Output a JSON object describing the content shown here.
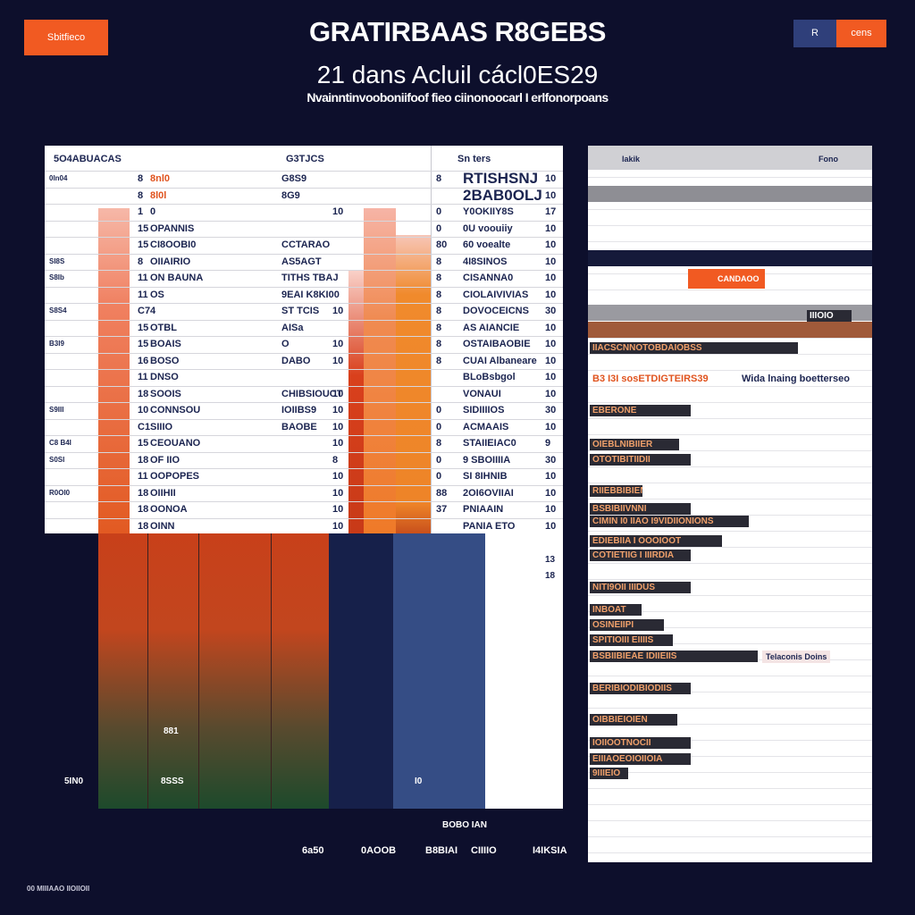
{
  "header": {
    "badge": "Sbitfieco",
    "title": "GRATIRBAAS R8GEBS",
    "subtitle": "21 dans Acluil cácl0ES29",
    "caption": "Nvainntinvooboniifoof fieo ciinonoocarl I erlfonorpoans",
    "button_icon": "R",
    "button_label": "cens"
  },
  "table": {
    "columns": [
      "5O4ABUACAS",
      "G3TJCS",
      "Sn ters"
    ],
    "rows": [
      {
        "n": "8",
        "name": "8nl0",
        "c": "G8S9",
        "rn": "8",
        "rt": "RTISHSNJ",
        "rr": "10",
        "l": "0ln04"
      },
      {
        "n": "8",
        "name": "8l0l",
        "c": "8G9",
        "rt": "2BAB0OLJ",
        "rr": "10"
      },
      {
        "n": "1",
        "name": "0",
        "r": "10",
        "rn": "0",
        "rt": "Y0OKIIY8S",
        "rr": "17"
      },
      {
        "n": "15",
        "name": "OPANNIS",
        "rn": "0",
        "rt": "0U voouiiy",
        "rr": "10"
      },
      {
        "n": "15",
        "name": "CI8OOBI0",
        "c": "CCTARAO",
        "rn": "80",
        "rt": "60 voealte",
        "rr": "10"
      },
      {
        "l": "SI8S",
        "n": "8",
        "name": "OIIAIRIO",
        "c": "AS5AGT",
        "rn": "8",
        "rt": "4I8SINOS",
        "rr": "10"
      },
      {
        "l": "S8lb",
        "n": "11",
        "name": "ON BAUNA",
        "c": "TITHS TBAJ",
        "rn": "8",
        "rt": "CISANNA0",
        "rr": "10"
      },
      {
        "n": "11",
        "name": "OS",
        "c": "9EAI K8KI00",
        "rn": "8",
        "rt": "CIOLAIVIVIAS",
        "rr": "10"
      },
      {
        "l": "S8S4",
        "n": "C7",
        "name": "4",
        "c": "ST TCIS",
        "r": "10",
        "rn": "8",
        "rt": "DOVOCEICNS",
        "rr": "30"
      },
      {
        "n": "15",
        "name": "OTBL",
        "c": "AISa",
        "rn": "8",
        "rt": "AS AIANCIE",
        "rr": "10"
      },
      {
        "l": "B3I9",
        "n": "15",
        "name": "BOAIS",
        "c": "O",
        "r": "10",
        "rn": "8",
        "rt": "OSTAIBAOBIE",
        "rr": "10"
      },
      {
        "n": "16",
        "name": "BOSO",
        "c": "DABO",
        "r": "10",
        "rn": "8",
        "rt": "CUAI Albaneare",
        "rr": "10"
      },
      {
        "n": "11",
        "name": "DNSO",
        "rt": "BLoBsbgol",
        "rr": "10"
      },
      {
        "n": "18",
        "name": "SOOIS",
        "c": "CHIBSIOUCT",
        "r": "10",
        "rt": "VONAUI",
        "rr": "10"
      },
      {
        "l": "S9III",
        "n": "10",
        "name": "CONNSOU",
        "c": "IOIIBS9",
        "r": "10",
        "rn": "0",
        "rt": "SIDIIIIOS",
        "rr": "30"
      },
      {
        "n": "C1",
        "name": "SIIIO",
        "c": "BAOBE",
        "r": "10",
        "rn": "0",
        "rt": "ACMAAIS",
        "rr": "10"
      },
      {
        "l": "C8 B4I",
        "n": "15",
        "name": "CEOUANO",
        "r": "10",
        "rn": "8",
        "rt": "STAIIEIAC0",
        "rr": "9"
      },
      {
        "l": "S0SI",
        "n": "18",
        "name": "OF IIO",
        "r": "8",
        "rn": "0",
        "rt": "9 SBOIIIIA",
        "rr": "30"
      },
      {
        "n": "11",
        "name": "OOPOPES",
        "r": "10",
        "rn": "0",
        "rt": "SI 8IHNIB",
        "rr": "10"
      },
      {
        "l": "R0OI0",
        "n": "18",
        "name": "OIIHII",
        "r": "10",
        "rn": "88",
        "rt": "2OI6OVIIAI",
        "rr": "10"
      },
      {
        "n": "18",
        "name": "OONOA",
        "r": "10",
        "rn": "37",
        "rt": "PNIAAIN",
        "rr": "10"
      },
      {
        "n": "18",
        "name": "OINN",
        "r": "10",
        "rt": "PANIA ETO",
        "rr": "10"
      }
    ]
  },
  "lower": {
    "labels": [
      "881",
      "5IN0",
      "8SSS",
      "I0",
      "13",
      "18",
      "BOBO IAN"
    ]
  },
  "side": {
    "columns": [
      "lakik",
      "Fono"
    ],
    "button": "CANDAOO",
    "tag": "IIIOIO",
    "rows": [
      "IIACSCNNOTOBDAIOBSS",
      "B3 I3I sosETDIGTEIRS39",
      "EBERONE",
      "OIEBLNIBIIER",
      "OTOTIBITIIDII",
      "RIIEBBIBIEN",
      "BSBIBIIVNNI",
      "CIMIN I0 IIAO I9VIDIIONIONS",
      "EDIEBIIA I OOOIOOT",
      "COTIETIIG I IIIRDIA",
      "NITI9OII IIIDUS",
      "INBOAT",
      "OSINEIIPI",
      "SPITIOIII EIIIIS",
      "BSBIIBIEAE IDIIEIIS",
      "BERIBIODIBIODIIS",
      "OIBBIEIOIEN",
      "IOIIOOTNOCII",
      "EIIIAOEOIOIIOIA",
      "9IIIEIO"
    ],
    "notes": [
      "Wida lnaing boetterseo",
      "Telaconis Doins"
    ]
  },
  "footer": {
    "labels": [
      "6a50",
      "0AOOB",
      "B8BIAI",
      "CIIIIO",
      "I4IKSIA"
    ],
    "note": "00 MIIIAAO IIOIIOII"
  }
}
